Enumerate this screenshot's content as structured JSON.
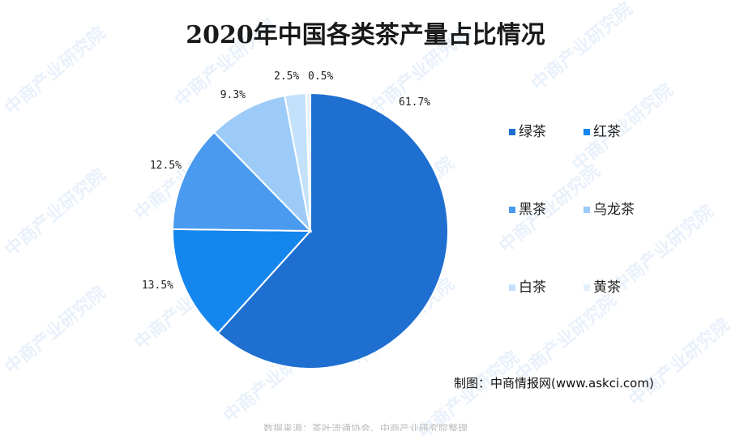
{
  "watermark": "中商产业研究院",
  "credit": "制图：中商情报网(www.askci.com)",
  "source_note": "数据来源：茶叶流通协会、中商产业研究院整理",
  "colors": {
    "background": "#ffffff",
    "pie_edge": "#ffffff"
  },
  "chart_data": {
    "type": "pie",
    "title": "2020年中国各类茶产量占比情况",
    "legend_position": "right",
    "unit": "%",
    "slices": [
      {
        "name": "绿茶",
        "value": 61.7,
        "label": "61.7%",
        "color": "#1E6FD0"
      },
      {
        "name": "红茶",
        "value": 13.5,
        "label": "13.5%",
        "color": "#1586EE"
      },
      {
        "name": "黑茶",
        "value": 12.5,
        "label": "12.5%",
        "color": "#4A9BEF"
      },
      {
        "name": "乌龙茶",
        "value": 9.3,
        "label": "9.3%",
        "color": "#9DCBF8"
      },
      {
        "name": "白茶",
        "value": 2.5,
        "label": "2.5%",
        "color": "#C4E1FB"
      },
      {
        "name": "黄茶",
        "value": 0.5,
        "label": "0.5%",
        "color": "#E3F1FD"
      }
    ]
  }
}
